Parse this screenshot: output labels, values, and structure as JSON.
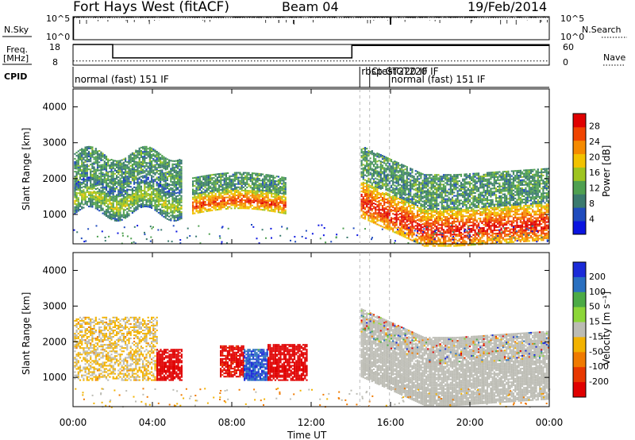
{
  "header": {
    "radar": "Fort Hays West (fitACF)",
    "beam": "Beam 04",
    "date": "19/Feb/2014"
  },
  "nsky_panel": {
    "left_label": "N.Sky",
    "right_label": "N.Search",
    "left_ticks": [
      "10^5",
      "10^0"
    ],
    "right_ticks": [
      "10^5",
      "10^0"
    ]
  },
  "freq_panel": {
    "left_label_line1": "Freq.",
    "left_label_line2": "[MHz]",
    "right_label": "Nave",
    "left_ticks": [
      "18",
      "8"
    ],
    "right_ticks": [
      "60",
      "0"
    ]
  },
  "cpid_panel": {
    "label": "CPID",
    "segments": [
      {
        "text": "normal (fast) 151 IF",
        "start_hour": 0.0
      },
      {
        "text": "rbsp GT220 IF",
        "start_hour": 14.45
      },
      {
        "text": "CtestGT220 IF",
        "start_hour": 14.95
      },
      {
        "text": "normal (fast) 151 IF",
        "start_hour": 15.95
      }
    ]
  },
  "power_panel": {
    "ylabel": "Slant Range [km]",
    "yticks": [
      "1000",
      "2000",
      "3000",
      "4000"
    ],
    "colorbar_label": "Power [dB]",
    "colorbar_ticks": [
      "4",
      "8",
      "12",
      "16",
      "20",
      "24",
      "28"
    ]
  },
  "velocity_panel": {
    "ylabel": "Slant Range [km]",
    "yticks": [
      "1000",
      "2000",
      "3000",
      "4000"
    ],
    "colorbar_label": "Velocity [m s⁻¹]",
    "colorbar_ticks": [
      "200",
      "100",
      "50",
      "15",
      "-15",
      "-50",
      "-100",
      "-200"
    ]
  },
  "xaxis": {
    "label": "Time UT",
    "ticks": [
      "00:00",
      "04:00",
      "08:00",
      "12:00",
      "16:00",
      "20:00",
      "00:00"
    ]
  },
  "colors": {
    "power_scale": [
      "#0a14e0",
      "#1f4bbd",
      "#3a7a6e",
      "#4fa050",
      "#9ec41f",
      "#f2c200",
      "#f58a00",
      "#f04400",
      "#e00000"
    ],
    "velocity_scale": [
      "#1b2bd8",
      "#2a70c0",
      "#4cab46",
      "#8cd638",
      "#bcbcb4",
      "#f2b200",
      "#f07a00",
      "#e83800",
      "#e00000"
    ]
  },
  "chart_data": [
    {
      "type": "line",
      "title": "N.Sky / N.Search",
      "x_hours": [
        0,
        0.05,
        24
      ],
      "series": [
        {
          "name": "N.Sky",
          "values": [
            1,
            100000,
            100000
          ]
        },
        {
          "name": "N.Search",
          "values": [
            1,
            100000,
            100000
          ]
        }
      ],
      "ylim": [
        1,
        100000
      ],
      "log_y": true
    },
    {
      "type": "line",
      "title": "Freq. / Nave",
      "series": [
        {
          "name": "Freq. [MHz]",
          "x_hours": [
            0,
            2.0,
            2.0,
            14.05,
            14.05,
            15.95,
            15.95,
            24
          ],
          "values": [
            18,
            18,
            11.5,
            11.5,
            17.5,
            17.5,
            17.5,
            17.5
          ]
        },
        {
          "name": "Nave",
          "x_hours": [
            0,
            24
          ],
          "values": [
            12,
            12
          ]
        }
      ],
      "ylim_left": [
        8,
        18
      ],
      "ylim_right": [
        0,
        60
      ]
    },
    {
      "type": "heatmap",
      "title": "Power [dB]",
      "x_range_hours": [
        0,
        24
      ],
      "y_range_km": [
        180,
        4500
      ],
      "zlim": [
        0,
        30
      ],
      "blobs": [
        {
          "t0": 0.05,
          "t1": 5.5,
          "r_low": 1000,
          "r_high": 2700,
          "core": 16
        },
        {
          "t0": 6.0,
          "t1": 10.7,
          "r_low": 1000,
          "r_high": 2000,
          "core": 26
        },
        {
          "t0": 14.5,
          "t1": 24.0,
          "r_low": 900,
          "r_high": 2900,
          "core": 28
        }
      ]
    },
    {
      "type": "heatmap",
      "title": "Velocity",
      "x_range_hours": [
        0,
        24
      ],
      "y_range_km": [
        180,
        4500
      ],
      "zlim": [
        -200,
        200
      ],
      "blobs": [
        {
          "t0": 0.05,
          "t1": 4.2,
          "r_low": 900,
          "r_high": 2700,
          "velocity": -30
        },
        {
          "t0": 4.2,
          "t1": 5.5,
          "r_low": 900,
          "r_high": 1800,
          "velocity": -200
        },
        {
          "t0": 7.4,
          "t1": 8.6,
          "r_low": 1000,
          "r_high": 1900,
          "velocity": -180
        },
        {
          "t0": 8.6,
          "t1": 9.8,
          "r_low": 900,
          "r_high": 1800,
          "velocity": 150
        },
        {
          "t0": 9.8,
          "t1": 11.8,
          "r_low": 900,
          "r_high": 1900,
          "velocity": -200
        },
        {
          "t0": 14.5,
          "t1": 24.0,
          "r_low": 1000,
          "r_high": 2900,
          "velocity": 0
        }
      ]
    }
  ]
}
